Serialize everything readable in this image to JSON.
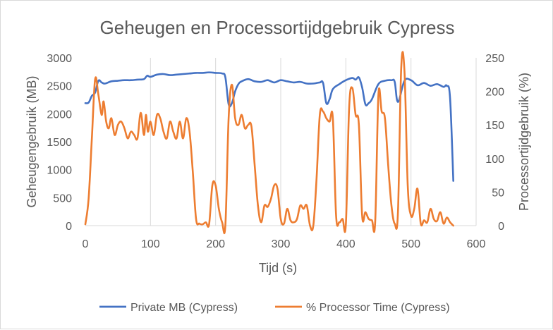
{
  "chart_data": {
    "type": "line",
    "title": "Geheugen en Processortijdgebruik Cypress",
    "xlabel": "Tijd (s)",
    "ylabel": "Geheugengebruik (MB)",
    "y2label": "Processortijdgebruik (%)",
    "xlim": [
      0,
      600
    ],
    "ylim": [
      0,
      3000
    ],
    "y2lim": [
      0,
      250
    ],
    "x_ticks": [
      "0",
      "100",
      "200",
      "300",
      "400",
      "500",
      "600"
    ],
    "y_ticks": [
      "0",
      "500",
      "1000",
      "1500",
      "2000",
      "2500",
      "3000"
    ],
    "y2_ticks": [
      "0",
      "50",
      "100",
      "150",
      "200",
      "250"
    ],
    "grid": "vertical",
    "legend_position": "bottom",
    "series": [
      {
        "name": "Private MB (Cypress)",
        "axis": "left",
        "color": "#4472c4",
        "x": [
          0,
          5,
          10,
          15,
          20,
          25,
          30,
          40,
          50,
          60,
          70,
          80,
          90,
          95,
          100,
          110,
          120,
          130,
          140,
          150,
          160,
          170,
          180,
          190,
          200,
          210,
          215,
          220,
          225,
          230,
          235,
          240,
          250,
          260,
          270,
          280,
          290,
          300,
          310,
          320,
          330,
          340,
          350,
          360,
          365,
          370,
          375,
          380,
          390,
          400,
          410,
          415,
          420,
          425,
          430,
          435,
          440,
          450,
          460,
          470,
          475,
          480,
          490,
          500,
          510,
          520,
          530,
          540,
          550,
          555,
          560,
          565
        ],
        "values": [
          2190,
          2200,
          2320,
          2380,
          2590,
          2560,
          2540,
          2580,
          2590,
          2600,
          2600,
          2610,
          2620,
          2680,
          2660,
          2700,
          2710,
          2690,
          2700,
          2710,
          2720,
          2730,
          2730,
          2740,
          2730,
          2720,
          2650,
          2170,
          2190,
          2400,
          2530,
          2580,
          2620,
          2580,
          2570,
          2600,
          2560,
          2600,
          2580,
          2560,
          2570,
          2540,
          2540,
          2560,
          2550,
          2190,
          2260,
          2440,
          2530,
          2600,
          2640,
          2610,
          2650,
          2470,
          2170,
          2190,
          2260,
          2530,
          2590,
          2600,
          2570,
          2210,
          2590,
          2600,
          2510,
          2550,
          2500,
          2530,
          2480,
          2500,
          2280,
          800
        ]
      },
      {
        "name": "% Processor Time (Cypress)",
        "axis": "right",
        "color": "#ed7d31",
        "x": [
          0,
          5,
          10,
          15,
          20,
          25,
          28,
          32,
          36,
          40,
          45,
          50,
          55,
          60,
          65,
          70,
          75,
          80,
          85,
          90,
          93,
          96,
          100,
          105,
          110,
          115,
          120,
          125,
          130,
          135,
          140,
          145,
          150,
          155,
          160,
          165,
          170,
          175,
          180,
          185,
          190,
          195,
          200,
          205,
          210,
          215,
          220,
          225,
          230,
          235,
          240,
          245,
          250,
          255,
          260,
          265,
          270,
          275,
          280,
          285,
          290,
          295,
          300,
          305,
          310,
          315,
          320,
          325,
          330,
          335,
          340,
          345,
          350,
          355,
          360,
          365,
          370,
          375,
          380,
          385,
          390,
          395,
          400,
          405,
          410,
          415,
          420,
          425,
          430,
          435,
          440,
          445,
          450,
          455,
          460,
          465,
          470,
          475,
          480,
          485,
          490,
          495,
          500,
          505,
          510,
          515,
          520,
          525,
          530,
          535,
          540,
          545,
          550,
          555,
          560,
          565
        ],
        "values": [
          2,
          40,
          130,
          218,
          195,
          165,
          185,
          155,
          145,
          160,
          135,
          150,
          155,
          145,
          130,
          140,
          135,
          130,
          168,
          135,
          165,
          140,
          155,
          135,
          165,
          160,
          140,
          130,
          155,
          140,
          130,
          155,
          130,
          160,
          140,
          80,
          10,
          3,
          2,
          5,
          2,
          60,
          60,
          25,
          5,
          1,
          160,
          210,
          160,
          150,
          165,
          145,
          150,
          148,
          90,
          30,
          5,
          30,
          28,
          40,
          60,
          55,
          10,
          3,
          25,
          8,
          5,
          10,
          30,
          25,
          30,
          0,
          0,
          70,
          165,
          170,
          160,
          155,
          160,
          15,
          5,
          10,
          2,
          175,
          205,
          165,
          150,
          15,
          20,
          10,
          8,
          5,
          195,
          170,
          160,
          90,
          30,
          3,
          20,
          235,
          230,
          60,
          15,
          25,
          55,
          3,
          8,
          5,
          25,
          10,
          7,
          20,
          3,
          12,
          5,
          0
        ]
      }
    ]
  }
}
